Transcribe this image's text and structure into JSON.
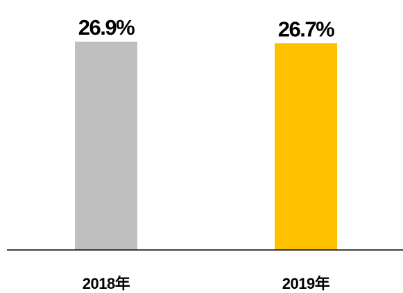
{
  "chart_data": {
    "type": "bar",
    "categories": [
      "2018年",
      "2019年"
    ],
    "values": [
      26.9,
      26.7
    ],
    "value_labels": [
      "26.9%",
      "26.7%"
    ],
    "colors": [
      "#bfbfbf",
      "#ffc000"
    ]
  }
}
